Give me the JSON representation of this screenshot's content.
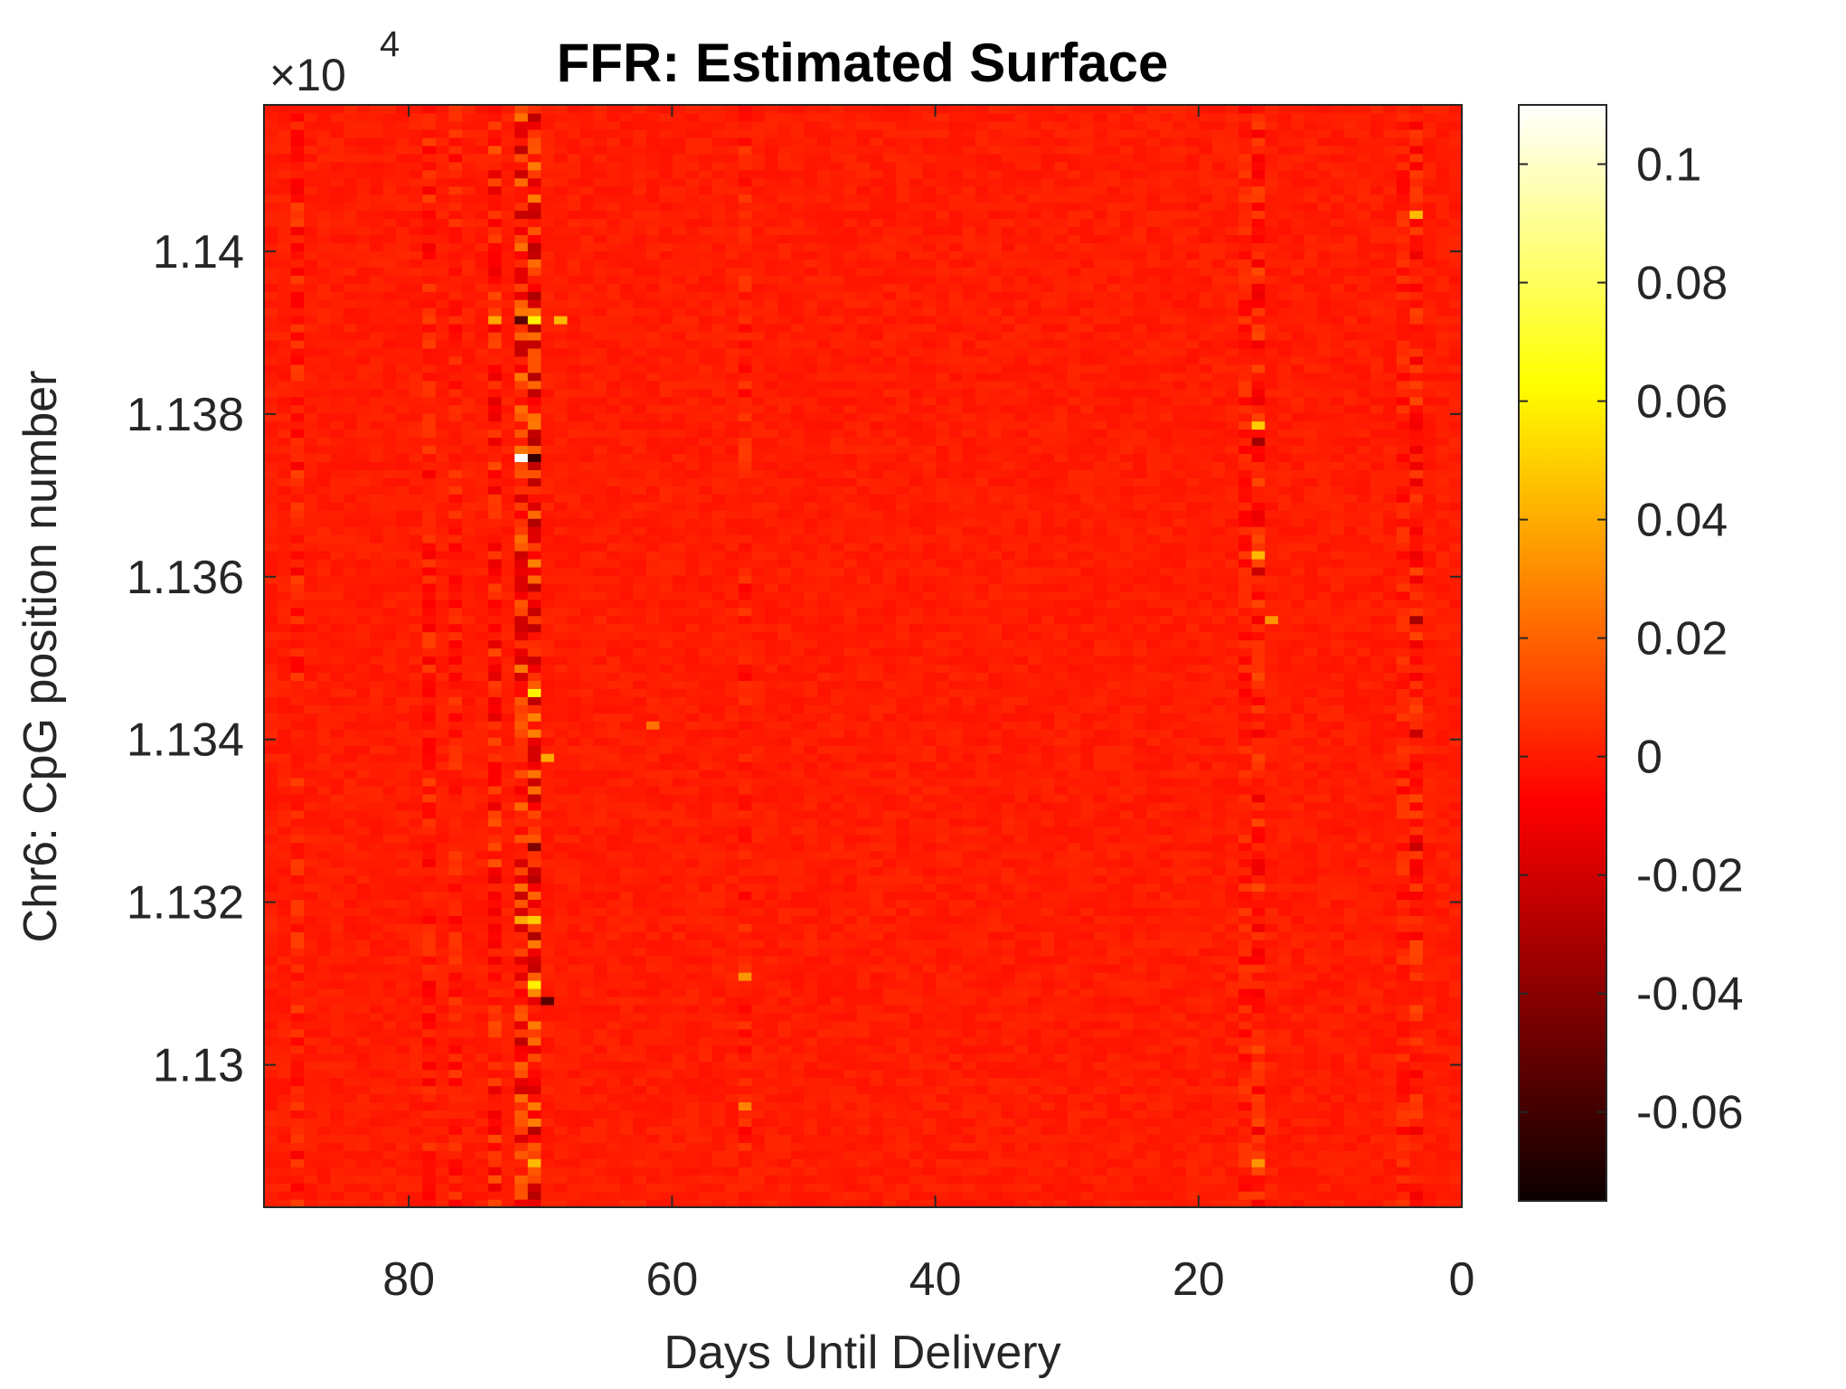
{
  "chart_data": {
    "type": "heatmap",
    "title": "FFR: Estimated Surface",
    "xlabel": "Days Until Delivery",
    "ylabel": "Chr6: CpG position number",
    "y_exponent_label": "×10",
    "y_exponent_power": "4",
    "x_direction": "reversed",
    "xlim": [
      0,
      91
    ],
    "ylim": [
      11282.5,
      11418
    ],
    "x_ticks": [
      80,
      60,
      40,
      20,
      0
    ],
    "y_ticks": [
      1.13,
      1.132,
      1.134,
      1.136,
      1.138,
      1.14
    ],
    "colormap": "hot",
    "clim": [
      -0.075,
      0.11
    ],
    "colorbar_ticks": [
      0.1,
      0.08,
      0.06,
      0.04,
      0.02,
      0,
      -0.02,
      -0.04,
      -0.06
    ],
    "grid": "off",
    "n_cols": 91,
    "n_rows": 136,
    "base_value": 0.002,
    "hot_columns": [
      {
        "x": 70,
        "amplitude": 0.03
      },
      {
        "x": 71,
        "amplitude": 0.025
      },
      {
        "x": 73,
        "amplitude": 0.015
      },
      {
        "x": 78,
        "amplitude": 0.01
      },
      {
        "x": 76,
        "amplitude": 0.008
      },
      {
        "x": 15,
        "amplitude": 0.012
      },
      {
        "x": 16,
        "amplitude": 0.008
      },
      {
        "x": 3,
        "amplitude": 0.012
      },
      {
        "x": 4,
        "amplitude": 0.008
      },
      {
        "x": 54,
        "amplitude": 0.008
      },
      {
        "x": 88,
        "amplitude": 0.01
      }
    ],
    "hot_spots": [
      {
        "x": 71,
        "y": 11375,
        "value": 0.11
      },
      {
        "x": 70,
        "y": 11375,
        "value": -0.06
      },
      {
        "x": 70,
        "y": 11392,
        "value": 0.06
      },
      {
        "x": 71,
        "y": 11392,
        "value": -0.05
      },
      {
        "x": 68,
        "y": 11392,
        "value": 0.045
      },
      {
        "x": 73,
        "y": 11392,
        "value": 0.04
      },
      {
        "x": 70,
        "y": 11346,
        "value": 0.06
      },
      {
        "x": 69,
        "y": 11338,
        "value": 0.04
      },
      {
        "x": 70,
        "y": 11327,
        "value": -0.04
      },
      {
        "x": 70,
        "y": 11318,
        "value": 0.05
      },
      {
        "x": 70,
        "y": 11310,
        "value": 0.06
      },
      {
        "x": 69,
        "y": 11308,
        "value": -0.05
      },
      {
        "x": 70,
        "y": 11288,
        "value": 0.045
      },
      {
        "x": 71,
        "y": 11318,
        "value": 0.04
      },
      {
        "x": 15,
        "y": 11379,
        "value": 0.05
      },
      {
        "x": 15,
        "y": 11377,
        "value": -0.03
      },
      {
        "x": 15,
        "y": 11363,
        "value": 0.045
      },
      {
        "x": 15,
        "y": 11361,
        "value": -0.02
      },
      {
        "x": 14,
        "y": 11355,
        "value": 0.035
      },
      {
        "x": 15,
        "y": 11288,
        "value": 0.035
      },
      {
        "x": 3,
        "y": 11405,
        "value": 0.045
      },
      {
        "x": 3,
        "y": 11355,
        "value": -0.03
      },
      {
        "x": 3,
        "y": 11341,
        "value": -0.02
      },
      {
        "x": 3,
        "y": 11327,
        "value": -0.02
      },
      {
        "x": 54,
        "y": 11311,
        "value": 0.035
      },
      {
        "x": 54,
        "y": 11295,
        "value": 0.03
      },
      {
        "x": 61,
        "y": 11342,
        "value": 0.025
      }
    ]
  }
}
